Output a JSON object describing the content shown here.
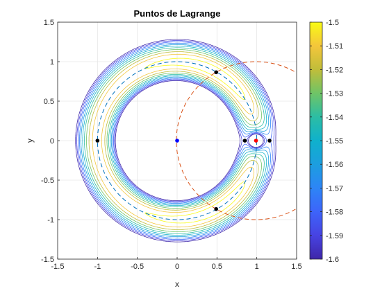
{
  "chart_data": {
    "type": "contour",
    "title": "Puntos de Lagrange",
    "xlabel": "x",
    "ylabel": "y",
    "xlim": [
      -1.5,
      1.5
    ],
    "ylim": [
      -1.5,
      1.5
    ],
    "xticks": [
      "-1.5",
      "-1",
      "-0.5",
      "0",
      "0.5",
      "1",
      "1.5"
    ],
    "yticks": [
      "-1.5",
      "-1",
      "-0.5",
      "0",
      "0.5",
      "1",
      "1.5"
    ],
    "grid": true,
    "colorbar": {
      "min": -1.6,
      "max": -1.5,
      "ticks": [
        "-1.5",
        "-1.51",
        "-1.52",
        "-1.53",
        "-1.54",
        "-1.55",
        "-1.56",
        "-1.57",
        "-1.58",
        "-1.59",
        "-1.6"
      ]
    },
    "contour_levels": [
      -1.6,
      -1.59,
      -1.58,
      -1.57,
      -1.56,
      -1.55,
      -1.54,
      -1.53,
      -1.52,
      -1.51,
      -1.5
    ],
    "mass_parameter": 0.01,
    "bodies": [
      {
        "x": 0,
        "y": 0,
        "color": "#0000ff"
      },
      {
        "x": 0.99,
        "y": 0,
        "color": "#ff0000"
      }
    ],
    "lagrange_points": [
      {
        "x": 0.85,
        "y": 0
      },
      {
        "x": 1.16,
        "y": 0
      },
      {
        "x": -1.0,
        "y": 0
      },
      {
        "x": 0.49,
        "y": 0.866
      },
      {
        "x": 0.49,
        "y": -0.866
      }
    ],
    "reference_circles": [
      {
        "center": [
          0,
          0
        ],
        "radius": 1,
        "color": "#0072bd",
        "style": "dashed"
      },
      {
        "center": [
          0.99,
          0
        ],
        "radius": 1,
        "color": "#d95319",
        "style": "dashed"
      }
    ]
  }
}
